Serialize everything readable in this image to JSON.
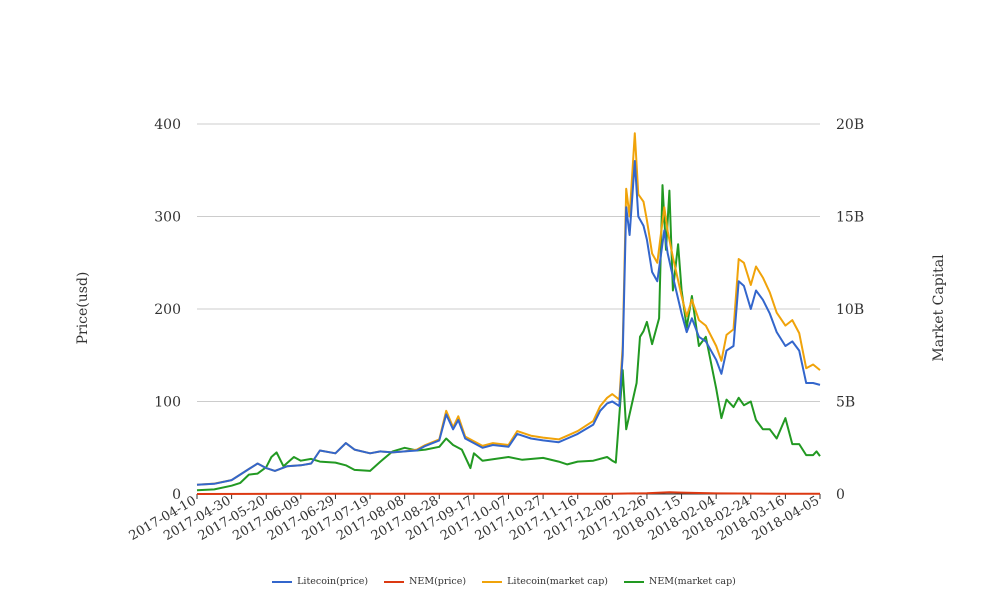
{
  "chart_data": {
    "type": "line",
    "xlabel": "",
    "y_left": {
      "label": "Price(usd)",
      "ticks": [
        "0",
        "100",
        "200",
        "300",
        "400"
      ],
      "range": [
        0,
        400
      ]
    },
    "y_right": {
      "label": "Market Capital",
      "ticks": [
        "0",
        "5B",
        "10B",
        "15B",
        "20B"
      ],
      "range": [
        0,
        20000000000
      ]
    },
    "x_ticks": [
      "2017-04-10",
      "2017-04-30",
      "2017-05-20",
      "2017-06-09",
      "2017-06-29",
      "2017-07-19",
      "2017-08-08",
      "2017-08-28",
      "2017-09-17",
      "2017-10-07",
      "2017-10-27",
      "2017-11-16",
      "2017-12-06",
      "2017-12-26",
      "2018-01-15",
      "2018-02-04",
      "2018-02-24",
      "2018-03-16",
      "2018-04-05"
    ],
    "grid": "horizontal",
    "legend_position": "bottom",
    "series": [
      {
        "name": "Litecoin(price)",
        "axis": "left",
        "color": "#3366cc",
        "points": [
          [
            "2017-04-10",
            10
          ],
          [
            "2017-04-20",
            11
          ],
          [
            "2017-04-30",
            15
          ],
          [
            "2017-05-10",
            27
          ],
          [
            "2017-05-15",
            33
          ],
          [
            "2017-05-20",
            28
          ],
          [
            "2017-05-25",
            25
          ],
          [
            "2017-06-01",
            30
          ],
          [
            "2017-06-09",
            31
          ],
          [
            "2017-06-15",
            33
          ],
          [
            "2017-06-20",
            47
          ],
          [
            "2017-06-29",
            44
          ],
          [
            "2017-07-05",
            55
          ],
          [
            "2017-07-10",
            48
          ],
          [
            "2017-07-19",
            44
          ],
          [
            "2017-07-25",
            46
          ],
          [
            "2017-08-01",
            45
          ],
          [
            "2017-08-08",
            46
          ],
          [
            "2017-08-15",
            47
          ],
          [
            "2017-08-20",
            52
          ],
          [
            "2017-08-28",
            58
          ],
          [
            "2017-09-01",
            86
          ],
          [
            "2017-09-05",
            70
          ],
          [
            "2017-09-08",
            80
          ],
          [
            "2017-09-12",
            60
          ],
          [
            "2017-09-17",
            55
          ],
          [
            "2017-09-22",
            50
          ],
          [
            "2017-09-28",
            53
          ],
          [
            "2017-10-07",
            51
          ],
          [
            "2017-10-12",
            65
          ],
          [
            "2017-10-20",
            60
          ],
          [
            "2017-10-27",
            58
          ],
          [
            "2017-11-05",
            56
          ],
          [
            "2017-11-10",
            60
          ],
          [
            "2017-11-16",
            65
          ],
          [
            "2017-11-25",
            75
          ],
          [
            "2017-11-29",
            90
          ],
          [
            "2017-12-03",
            98
          ],
          [
            "2017-12-06",
            100
          ],
          [
            "2017-12-10",
            95
          ],
          [
            "2017-12-12",
            150
          ],
          [
            "2017-12-14",
            310
          ],
          [
            "2017-12-16",
            280
          ],
          [
            "2017-12-19",
            360
          ],
          [
            "2017-12-21",
            300
          ],
          [
            "2017-12-24",
            290
          ],
          [
            "2017-12-26",
            275
          ],
          [
            "2017-12-29",
            240
          ],
          [
            "2018-01-01",
            230
          ],
          [
            "2018-01-05",
            285
          ],
          [
            "2018-01-07",
            260
          ],
          [
            "2018-01-10",
            235
          ],
          [
            "2018-01-15",
            195
          ],
          [
            "2018-01-18",
            175
          ],
          [
            "2018-01-21",
            190
          ],
          [
            "2018-01-25",
            170
          ],
          [
            "2018-01-29",
            165
          ],
          [
            "2018-02-04",
            145
          ],
          [
            "2018-02-07",
            130
          ],
          [
            "2018-02-10",
            155
          ],
          [
            "2018-02-14",
            160
          ],
          [
            "2018-02-17",
            230
          ],
          [
            "2018-02-20",
            225
          ],
          [
            "2018-02-24",
            200
          ],
          [
            "2018-02-27",
            220
          ],
          [
            "2018-03-03",
            210
          ],
          [
            "2018-03-07",
            195
          ],
          [
            "2018-03-11",
            175
          ],
          [
            "2018-03-16",
            160
          ],
          [
            "2018-03-20",
            165
          ],
          [
            "2018-03-24",
            155
          ],
          [
            "2018-03-28",
            120
          ],
          [
            "2018-04-01",
            120
          ],
          [
            "2018-04-05",
            118
          ]
        ]
      },
      {
        "name": "NEM(price)",
        "axis": "left",
        "color": "#dc3912",
        "points": [
          [
            "2017-04-10",
            0.01
          ],
          [
            "2017-06-09",
            0.2
          ],
          [
            "2017-09-17",
            0.25
          ],
          [
            "2017-12-06",
            0.3
          ],
          [
            "2017-12-26",
            0.8
          ],
          [
            "2018-01-08",
            1.8
          ],
          [
            "2018-01-15",
            1.5
          ],
          [
            "2018-02-04",
            0.6
          ],
          [
            "2018-03-16",
            0.3
          ],
          [
            "2018-04-05",
            0.25
          ]
        ]
      },
      {
        "name": "Litecoin(market cap)",
        "axis": "right",
        "color": "#f0a30a",
        "points": [
          [
            "2017-04-10",
            500000000
          ],
          [
            "2017-04-20",
            560000000
          ],
          [
            "2017-04-30",
            750000000
          ],
          [
            "2017-05-10",
            1350000000
          ],
          [
            "2017-05-15",
            1650000000
          ],
          [
            "2017-05-20",
            1400000000
          ],
          [
            "2017-05-25",
            1250000000
          ],
          [
            "2017-06-01",
            1500000000
          ],
          [
            "2017-06-09",
            1550000000
          ],
          [
            "2017-06-15",
            1650000000
          ],
          [
            "2017-06-20",
            2350000000
          ],
          [
            "2017-06-29",
            2200000000
          ],
          [
            "2017-07-05",
            2750000000
          ],
          [
            "2017-07-10",
            2400000000
          ],
          [
            "2017-07-19",
            2200000000
          ],
          [
            "2017-07-25",
            2300000000
          ],
          [
            "2017-08-01",
            2250000000
          ],
          [
            "2017-08-08",
            2300000000
          ],
          [
            "2017-08-15",
            2400000000
          ],
          [
            "2017-08-20",
            2650000000
          ],
          [
            "2017-08-28",
            2950000000
          ],
          [
            "2017-09-01",
            4500000000
          ],
          [
            "2017-09-05",
            3600000000
          ],
          [
            "2017-09-08",
            4200000000
          ],
          [
            "2017-09-12",
            3100000000
          ],
          [
            "2017-09-17",
            2850000000
          ],
          [
            "2017-09-22",
            2600000000
          ],
          [
            "2017-09-28",
            2750000000
          ],
          [
            "2017-10-07",
            2650000000
          ],
          [
            "2017-10-12",
            3400000000
          ],
          [
            "2017-10-20",
            3150000000
          ],
          [
            "2017-10-27",
            3050000000
          ],
          [
            "2017-11-05",
            2950000000
          ],
          [
            "2017-11-10",
            3150000000
          ],
          [
            "2017-11-16",
            3400000000
          ],
          [
            "2017-11-25",
            3950000000
          ],
          [
            "2017-11-29",
            4750000000
          ],
          [
            "2017-12-03",
            5200000000
          ],
          [
            "2017-12-06",
            5400000000
          ],
          [
            "2017-12-10",
            5100000000
          ],
          [
            "2017-12-12",
            8000000000
          ],
          [
            "2017-12-14",
            16500000000
          ],
          [
            "2017-12-16",
            15000000000
          ],
          [
            "2017-12-19",
            19500000000
          ],
          [
            "2017-12-21",
            16200000000
          ],
          [
            "2017-12-24",
            15800000000
          ],
          [
            "2017-12-26",
            14800000000
          ],
          [
            "2017-12-29",
            13000000000
          ],
          [
            "2018-01-01",
            12500000000
          ],
          [
            "2018-01-05",
            15500000000
          ],
          [
            "2018-01-07",
            14200000000
          ],
          [
            "2018-01-10",
            12800000000
          ],
          [
            "2018-01-15",
            10700000000
          ],
          [
            "2018-01-18",
            9600000000
          ],
          [
            "2018-01-21",
            10500000000
          ],
          [
            "2018-01-25",
            9400000000
          ],
          [
            "2018-01-29",
            9100000000
          ],
          [
            "2018-02-04",
            8000000000
          ],
          [
            "2018-02-07",
            7200000000
          ],
          [
            "2018-02-10",
            8600000000
          ],
          [
            "2018-02-14",
            8900000000
          ],
          [
            "2018-02-17",
            12700000000
          ],
          [
            "2018-02-20",
            12500000000
          ],
          [
            "2018-02-24",
            11300000000
          ],
          [
            "2018-02-27",
            12300000000
          ],
          [
            "2018-03-03",
            11700000000
          ],
          [
            "2018-03-07",
            10900000000
          ],
          [
            "2018-03-11",
            9800000000
          ],
          [
            "2018-03-16",
            9100000000
          ],
          [
            "2018-03-20",
            9400000000
          ],
          [
            "2018-03-24",
            8700000000
          ],
          [
            "2018-03-28",
            6800000000
          ],
          [
            "2018-04-01",
            7000000000
          ],
          [
            "2018-04-05",
            6700000000
          ]
        ]
      },
      {
        "name": "NEM(market cap)",
        "axis": "right",
        "color": "#229922",
        "points": [
          [
            "2017-04-10",
            200000000
          ],
          [
            "2017-04-20",
            250000000
          ],
          [
            "2017-04-30",
            450000000
          ],
          [
            "2017-05-05",
            600000000
          ],
          [
            "2017-05-10",
            1050000000
          ],
          [
            "2017-05-15",
            1100000000
          ],
          [
            "2017-05-20",
            1450000000
          ],
          [
            "2017-05-23",
            2000000000
          ],
          [
            "2017-05-26",
            2250000000
          ],
          [
            "2017-05-30",
            1500000000
          ],
          [
            "2017-06-05",
            2000000000
          ],
          [
            "2017-06-09",
            1800000000
          ],
          [
            "2017-06-15",
            1900000000
          ],
          [
            "2017-06-20",
            1750000000
          ],
          [
            "2017-06-29",
            1700000000
          ],
          [
            "2017-07-05",
            1550000000
          ],
          [
            "2017-07-10",
            1300000000
          ],
          [
            "2017-07-19",
            1250000000
          ],
          [
            "2017-07-25",
            1750000000
          ],
          [
            "2017-08-01",
            2300000000
          ],
          [
            "2017-08-08",
            2500000000
          ],
          [
            "2017-08-15",
            2350000000
          ],
          [
            "2017-08-20",
            2400000000
          ],
          [
            "2017-08-28",
            2550000000
          ],
          [
            "2017-09-01",
            3000000000
          ],
          [
            "2017-09-05",
            2650000000
          ],
          [
            "2017-09-10",
            2400000000
          ],
          [
            "2017-09-15",
            1400000000
          ],
          [
            "2017-09-17",
            2200000000
          ],
          [
            "2017-09-22",
            1800000000
          ],
          [
            "2017-10-07",
            2000000000
          ],
          [
            "2017-10-15",
            1850000000
          ],
          [
            "2017-10-27",
            1950000000
          ],
          [
            "2017-11-05",
            1750000000
          ],
          [
            "2017-11-10",
            1600000000
          ],
          [
            "2017-11-16",
            1750000000
          ],
          [
            "2017-11-25",
            1800000000
          ],
          [
            "2017-12-03",
            2000000000
          ],
          [
            "2017-12-06",
            1800000000
          ],
          [
            "2017-12-08",
            1700000000
          ],
          [
            "2017-12-12",
            6700000000
          ],
          [
            "2017-12-14",
            3500000000
          ],
          [
            "2017-12-17",
            4750000000
          ],
          [
            "2017-12-20",
            6000000000
          ],
          [
            "2017-12-22",
            8500000000
          ],
          [
            "2017-12-24",
            8800000000
          ],
          [
            "2017-12-26",
            9300000000
          ],
          [
            "2017-12-29",
            8100000000
          ],
          [
            "2018-01-02",
            9500000000
          ],
          [
            "2018-01-04",
            16700000000
          ],
          [
            "2018-01-06",
            13200000000
          ],
          [
            "2018-01-08",
            16400000000
          ],
          [
            "2018-01-10",
            11000000000
          ],
          [
            "2018-01-13",
            13500000000
          ],
          [
            "2018-01-15",
            11000000000
          ],
          [
            "2018-01-18",
            9000000000
          ],
          [
            "2018-01-21",
            10700000000
          ],
          [
            "2018-01-25",
            8000000000
          ],
          [
            "2018-01-29",
            8500000000
          ],
          [
            "2018-02-04",
            5700000000
          ],
          [
            "2018-02-07",
            4100000000
          ],
          [
            "2018-02-10",
            5100000000
          ],
          [
            "2018-02-14",
            4700000000
          ],
          [
            "2018-02-17",
            5200000000
          ],
          [
            "2018-02-20",
            4800000000
          ],
          [
            "2018-02-24",
            5000000000
          ],
          [
            "2018-02-27",
            4000000000
          ],
          [
            "2018-03-03",
            3500000000
          ],
          [
            "2018-03-07",
            3500000000
          ],
          [
            "2018-03-11",
            3000000000
          ],
          [
            "2018-03-16",
            4100000000
          ],
          [
            "2018-03-20",
            2700000000
          ],
          [
            "2018-03-24",
            2700000000
          ],
          [
            "2018-03-28",
            2100000000
          ],
          [
            "2018-04-01",
            2100000000
          ],
          [
            "2018-04-03",
            2300000000
          ],
          [
            "2018-04-05",
            2050000000
          ]
        ]
      }
    ]
  }
}
